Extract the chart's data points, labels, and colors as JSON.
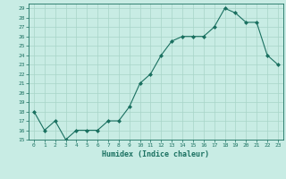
{
  "x": [
    0,
    1,
    2,
    3,
    4,
    5,
    6,
    7,
    8,
    9,
    10,
    11,
    12,
    13,
    14,
    15,
    16,
    17,
    18,
    19,
    20,
    21,
    22,
    23
  ],
  "y": [
    18,
    16,
    17,
    15,
    16,
    16,
    16,
    17,
    17,
    18.5,
    21,
    22,
    24,
    25.5,
    26,
    26,
    26,
    27,
    29,
    28.5,
    27.5,
    27.5,
    24,
    23
  ],
  "xlim": [
    -0.5,
    23.5
  ],
  "ylim": [
    15,
    29.5
  ],
  "yticks": [
    15,
    16,
    17,
    18,
    19,
    20,
    21,
    22,
    23,
    24,
    25,
    26,
    27,
    28,
    29
  ],
  "xticks": [
    0,
    1,
    2,
    3,
    4,
    5,
    6,
    7,
    8,
    9,
    10,
    11,
    12,
    13,
    14,
    15,
    16,
    17,
    18,
    19,
    20,
    21,
    22,
    23
  ],
  "xlabel": "Humidex (Indice chaleur)",
  "line_color": "#1a7060",
  "marker_color": "#1a7060",
  "bg_color": "#c8ece4",
  "grid_color": "#a8d4c8"
}
